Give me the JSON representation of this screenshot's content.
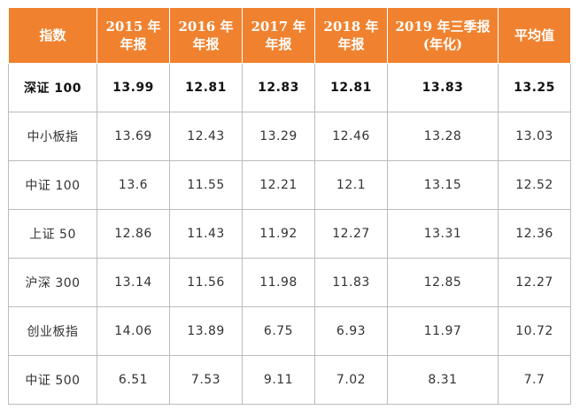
{
  "table": {
    "headers": [
      {
        "lines": [
          "指数"
        ]
      },
      {
        "lines": [
          "2015 年",
          "年报"
        ]
      },
      {
        "lines": [
          "2016 年",
          "年报"
        ]
      },
      {
        "lines": [
          "2017 年",
          "年报"
        ]
      },
      {
        "lines": [
          "2018 年",
          "年报"
        ]
      },
      {
        "lines": [
          "2019 年三季报",
          "(年化)"
        ]
      },
      {
        "lines": [
          "平均值"
        ]
      }
    ],
    "rows": [
      {
        "name": "深证 100",
        "values": [
          "13.99",
          "12.81",
          "12.83",
          "12.81",
          "13.83",
          "13.25"
        ],
        "bold": true
      },
      {
        "name": "中小板指",
        "values": [
          "13.69",
          "12.43",
          "13.29",
          "12.46",
          "13.28",
          "13.03"
        ],
        "bold": false
      },
      {
        "name": "中证 100",
        "values": [
          "13.6",
          "11.55",
          "12.21",
          "12.1",
          "13.15",
          "12.52"
        ],
        "bold": false
      },
      {
        "name": "上证 50",
        "values": [
          "12.86",
          "11.43",
          "11.92",
          "12.27",
          "13.31",
          "12.36"
        ],
        "bold": false
      },
      {
        "name": "沪深 300",
        "values": [
          "13.14",
          "11.56",
          "11.98",
          "11.83",
          "12.85",
          "12.27"
        ],
        "bold": false
      },
      {
        "name": "创业板指",
        "values": [
          "14.06",
          "13.89",
          "6.75",
          "6.93",
          "11.97",
          "10.72"
        ],
        "bold": false
      },
      {
        "name": "中证 500",
        "values": [
          "6.51",
          "7.53",
          "9.11",
          "7.02",
          "8.31",
          "7.7"
        ],
        "bold": false
      }
    ]
  },
  "colors": {
    "header_bg": "#f0822f",
    "header_text": "#ffffff",
    "grid_line": "#bcbcbc",
    "cell_text": "#333333"
  }
}
